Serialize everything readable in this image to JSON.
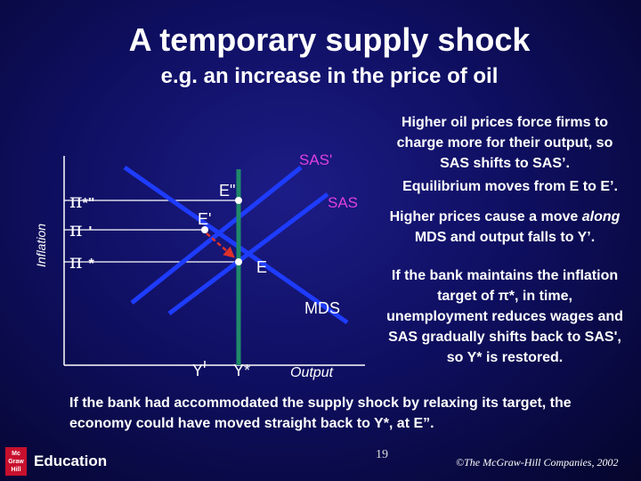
{
  "title": "A temporary supply shock",
  "subtitle": "e.g. an increase in the price of oil",
  "diagram": {
    "axis_y_label": "Inflation",
    "axis_x_label": "Output",
    "curve_sas": "SAS",
    "curve_sas_prime": "SAS'",
    "curve_mds": "MDS",
    "point_e": "E",
    "point_e_prime": "E'",
    "point_e_double": "E\"",
    "pi_symbol": "π",
    "pi_star_suffix": "*",
    "pi_prime_suffix": "'",
    "pi_double_suffix": "*\"",
    "y_prime": "Y'",
    "y_star": "Y*",
    "colors": {
      "sas": "#1e3cff",
      "mds": "#1e3cff",
      "vertical": "#1f8a6a",
      "arrow": "#e0302a",
      "label": "#e040e0"
    }
  },
  "explanation": {
    "p1": "Higher oil prices force firms to charge more for their output, so SAS shifts to SAS’.",
    "p2": "Equilibrium moves from E to E’.",
    "p3_pre": "Higher prices cause a move ",
    "p3_italic": "along",
    "p3_post": " MDS and output falls to Y’.",
    "p4_pre": "If the bank maintains the inflation target of ",
    "p4_symbol": "π*",
    "p4_post": ", in time, unemployment reduces wages and SAS gradually shifts back to SAS', so Y* is restored."
  },
  "bottom_note": "If the bank had accommodated the supply shock by relaxing its target, the economy could have moved straight back to Y*, at E”.",
  "footer": {
    "page_number": "19",
    "copyright": "©The McGraw-Hill Companies, 2002",
    "logo_line1": "Mc",
    "logo_line2": "Graw",
    "logo_line3": "Hill",
    "logo_text": "Education"
  }
}
